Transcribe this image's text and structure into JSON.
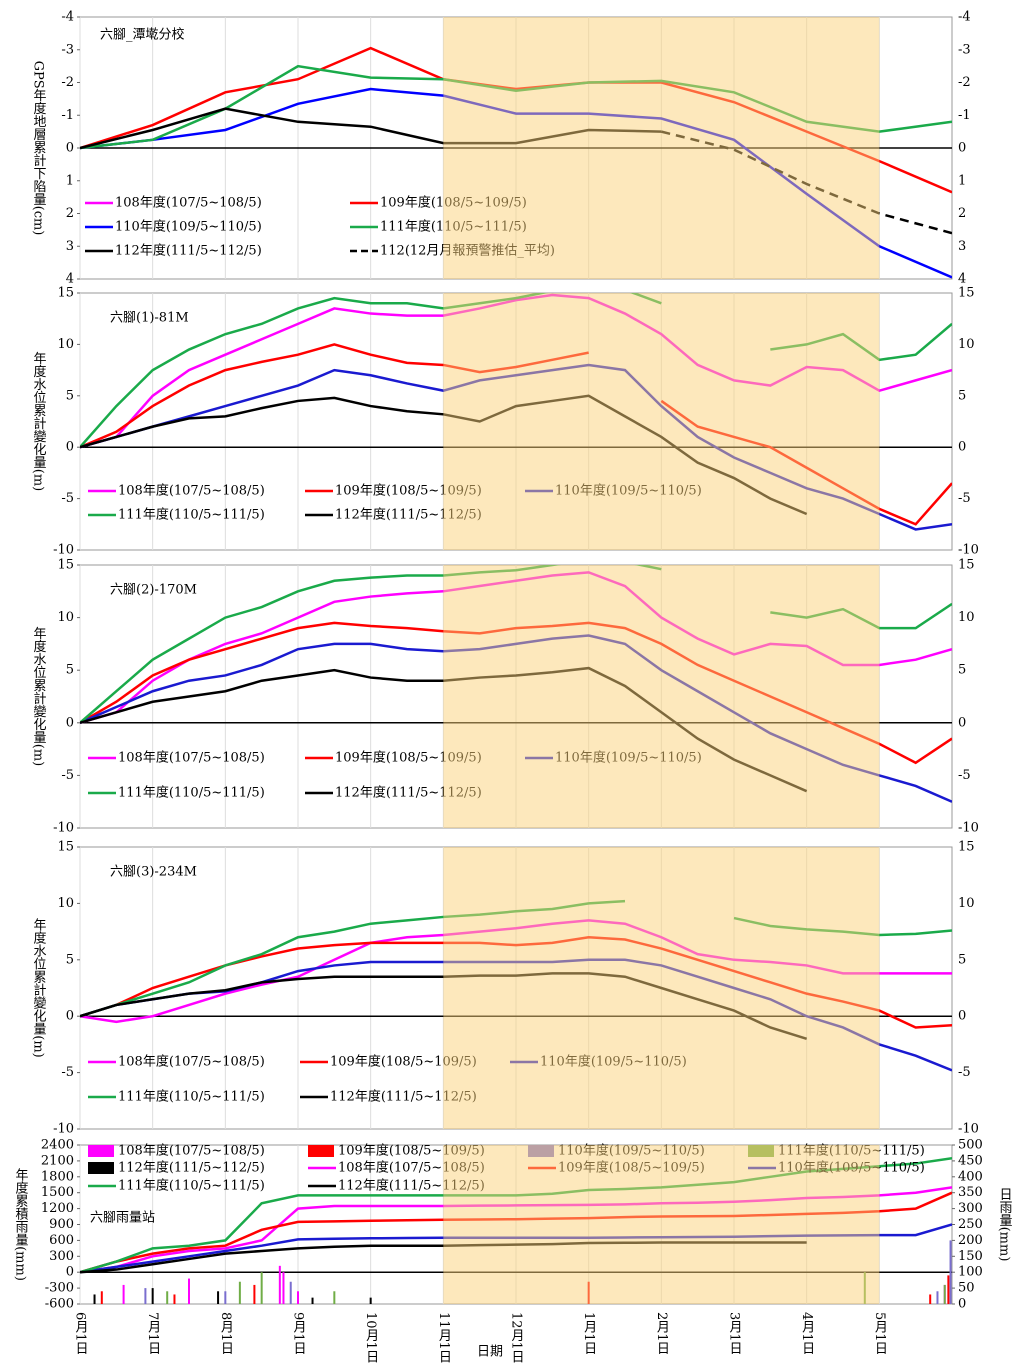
{
  "chart_data": [
    {
      "type": "line",
      "title": "六腳_潭墘分校",
      "ylabel": "GPS年度地層累計下陷量(cm)",
      "x": [
        0,
        1,
        2,
        3,
        4,
        5,
        6,
        7,
        8,
        9,
        10,
        11,
        12
      ],
      "xlim": [
        0,
        12
      ],
      "shaded_range": [
        5,
        11
      ],
      "ylim": [
        -4,
        4
      ],
      "y_inverted": true,
      "yticks": [
        -4,
        -3,
        -2,
        -1,
        0,
        1,
        2,
        3,
        4
      ],
      "series": [
        {
          "name": "108年度(107/5~108/5)",
          "color": "#ff00ff",
          "values": [
            null,
            null,
            null,
            null,
            null,
            null,
            null,
            null,
            null,
            null,
            null,
            null,
            null
          ]
        },
        {
          "name": "109年度(108/5~109/5)",
          "color": "#ff0000",
          "values": [
            0,
            -0.7,
            -1.7,
            -2.1,
            -3.05,
            -2.1,
            -1.8,
            -2.0,
            -2.0,
            -1.4,
            -0.5,
            0.4,
            1.35
          ]
        },
        {
          "name": "110年度(109/5~110/5)",
          "color": "#0000ff",
          "values": [
            0,
            -0.25,
            -0.55,
            -1.35,
            -1.8,
            -1.6,
            -1.05,
            -1.05,
            -0.9,
            -0.25,
            1.4,
            3.0,
            3.95
          ]
        },
        {
          "name": "111年度(110/5~111/5)",
          "color": "#1aaa4a",
          "values": [
            0,
            -0.25,
            -1.2,
            -2.5,
            -2.15,
            -2.1,
            -1.75,
            -2.0,
            -2.05,
            -1.7,
            -0.8,
            -0.5,
            -0.8
          ]
        },
        {
          "name": "112年度(111/5~112/5)",
          "color": "#000000",
          "values": [
            0,
            -0.55,
            -1.2,
            -0.8,
            -0.65,
            -0.15,
            -0.15,
            -0.55,
            -0.5,
            null,
            null,
            null,
            null
          ]
        },
        {
          "name": "112(12月月報預警推估_平均)",
          "color": "#000000",
          "dash": true,
          "values": [
            null,
            null,
            null,
            null,
            null,
            null,
            null,
            null,
            -0.5,
            0.05,
            1.1,
            2.0,
            2.6
          ]
        }
      ]
    },
    {
      "type": "line",
      "title": "六腳(1)-81M",
      "ylabel": "年度水位累計變化量(m)",
      "x": [
        0,
        0.5,
        1,
        1.5,
        2,
        2.5,
        3,
        3.5,
        4,
        4.5,
        5,
        5.5,
        6,
        6.5,
        7,
        7.5,
        8,
        8.5,
        9,
        9.5,
        10,
        10.5,
        11,
        11.5,
        12
      ],
      "xlim": [
        0,
        12
      ],
      "shaded_range": [
        5,
        11
      ],
      "ylim": [
        -10,
        15
      ],
      "yticks": [
        -10,
        -5,
        0,
        5,
        10,
        15
      ],
      "series": [
        {
          "name": "108年度(107/5~108/5)",
          "color": "#ff00ff",
          "values": [
            0,
            1,
            5,
            7.5,
            9,
            10.5,
            12,
            13.5,
            13,
            12.8,
            12.8,
            13.5,
            14.3,
            14.8,
            14.5,
            13,
            11,
            8,
            6.5,
            6,
            7.8,
            7.5,
            5.5,
            6.5,
            7.5
          ]
        },
        {
          "name": "109年度(108/5~109/5)",
          "color": "#ff0000",
          "values": [
            0,
            1.5,
            4,
            6,
            7.5,
            8.3,
            9,
            10,
            9,
            8.2,
            8,
            7.3,
            7.8,
            8.5,
            9.2,
            null,
            4.5,
            2,
            1,
            0,
            -2,
            -4,
            -6,
            -7.5,
            -3.5
          ]
        },
        {
          "name": "110年度(109/5~110/5)",
          "color": "#1a1ad0",
          "values": [
            0,
            1,
            2,
            3,
            4,
            5,
            6,
            7.5,
            7,
            6.2,
            5.5,
            6.5,
            7,
            7.5,
            8,
            7.5,
            4,
            1,
            -1,
            -2.5,
            -4,
            -5,
            -6.5,
            -8,
            -7.5
          ]
        },
        {
          "name": "111年度(110/5~111/5)",
          "color": "#1aaa4a",
          "values": [
            0,
            4,
            7.5,
            9.5,
            11,
            12,
            13.5,
            14.5,
            14,
            14,
            13.5,
            14,
            14.5,
            15.2,
            15.5,
            15.3,
            14,
            null,
            null,
            9.5,
            10,
            11,
            8.5,
            9,
            12
          ]
        },
        {
          "name": "112年度(111/5~112/5)",
          "color": "#000000",
          "values": [
            0,
            1,
            2,
            2.8,
            3,
            3.8,
            4.5,
            4.8,
            4,
            3.5,
            3.2,
            2.5,
            4,
            4.5,
            5,
            3,
            1,
            -1.5,
            -3,
            -5,
            -6.5,
            null,
            null,
            null,
            null
          ]
        }
      ]
    },
    {
      "type": "line",
      "title": "六腳(2)-170M",
      "ylabel": "年度水位累計變化量(m)",
      "x": [
        0,
        0.5,
        1,
        1.5,
        2,
        2.5,
        3,
        3.5,
        4,
        4.5,
        5,
        5.5,
        6,
        6.5,
        7,
        7.5,
        8,
        8.5,
        9,
        9.5,
        10,
        10.5,
        11,
        11.5,
        12
      ],
      "xlim": [
        0,
        12
      ],
      "shaded_range": [
        5,
        11
      ],
      "ylim": [
        -10,
        15
      ],
      "yticks": [
        -10,
        -5,
        0,
        5,
        10,
        15
      ],
      "series": [
        {
          "name": "108年度(107/5~108/5)",
          "color": "#ff00ff",
          "values": [
            0,
            1,
            4,
            6,
            7.5,
            8.5,
            10,
            11.5,
            12,
            12.3,
            12.5,
            13,
            13.5,
            14,
            14.3,
            13,
            10,
            8,
            6.5,
            7.5,
            7.3,
            5.5,
            5.5,
            6,
            7
          ]
        },
        {
          "name": "109年度(108/5~109/5)",
          "color": "#ff0000",
          "values": [
            0,
            2,
            4.5,
            6,
            7,
            8,
            9,
            9.5,
            9.2,
            9,
            8.7,
            8.5,
            9,
            9.2,
            9.5,
            9,
            7.5,
            5.5,
            4,
            2.5,
            1,
            -0.5,
            -2,
            -3.8,
            -1.5
          ]
        },
        {
          "name": "110年度(109/5~110/5)",
          "color": "#1a1ad0",
          "values": [
            0,
            1.5,
            3,
            4,
            4.5,
            5.5,
            7,
            7.5,
            7.5,
            7,
            6.8,
            7,
            7.5,
            8,
            8.3,
            7.5,
            5,
            3,
            1,
            -1,
            -2.5,
            -4,
            -5,
            -6,
            -7.5
          ]
        },
        {
          "name": "111年度(110/5~111/5)",
          "color": "#1aaa4a",
          "values": [
            0,
            3,
            6,
            8,
            10,
            11,
            12.5,
            13.5,
            13.8,
            14,
            14,
            14.3,
            14.5,
            15,
            15.5,
            15.3,
            14.6,
            null,
            null,
            10.5,
            10,
            10.8,
            9,
            9,
            11.3
          ]
        },
        {
          "name": "112年度(111/5~112/5)",
          "color": "#000000",
          "values": [
            0,
            1,
            2,
            2.5,
            3,
            4,
            4.5,
            5,
            4.3,
            4,
            4,
            4.3,
            4.5,
            4.8,
            5.2,
            3.5,
            1,
            -1.5,
            -3.5,
            -5,
            -6.5,
            null,
            null,
            null,
            null
          ]
        }
      ]
    },
    {
      "type": "line",
      "title": "六腳(3)-234M",
      "ylabel": "年度水位累計變化量(m)",
      "x": [
        0,
        0.5,
        1,
        1.5,
        2,
        2.5,
        3,
        3.5,
        4,
        4.5,
        5,
        5.5,
        6,
        6.5,
        7,
        7.5,
        8,
        8.5,
        9,
        9.5,
        10,
        10.5,
        11,
        11.5,
        12
      ],
      "xlim": [
        0,
        12
      ],
      "shaded_range": [
        5,
        11
      ],
      "ylim": [
        -10,
        15
      ],
      "yticks": [
        -10,
        -5,
        0,
        5,
        10,
        15
      ],
      "series": [
        {
          "name": "108年度(107/5~108/5)",
          "color": "#ff00ff",
          "values": [
            0,
            -0.5,
            0,
            1,
            2,
            2.8,
            3.5,
            5,
            6.5,
            7,
            7.2,
            7.5,
            7.8,
            8.2,
            8.5,
            8.2,
            7,
            5.5,
            5,
            4.8,
            4.5,
            3.8,
            3.8,
            3.8,
            3.8
          ]
        },
        {
          "name": "109年度(108/5~109/5)",
          "color": "#ff0000",
          "values": [
            0,
            1,
            2.5,
            3.5,
            4.5,
            5.3,
            6,
            6.3,
            6.5,
            6.5,
            6.5,
            6.5,
            6.3,
            6.5,
            7,
            6.8,
            6,
            5,
            4,
            3,
            2,
            1.3,
            0.5,
            -1,
            -0.8
          ]
        },
        {
          "name": "110年度(109/5~110/5)",
          "color": "#1a1ad0",
          "values": [
            0,
            1,
            1.5,
            2,
            2.2,
            3,
            4,
            4.5,
            4.8,
            4.8,
            4.8,
            4.8,
            4.8,
            4.8,
            5,
            5,
            4.5,
            3.5,
            2.5,
            1.5,
            0,
            -1,
            -2.5,
            -3.5,
            -4.8
          ]
        },
        {
          "name": "111年度(110/5~111/5)",
          "color": "#1aaa4a",
          "values": [
            0,
            1,
            2,
            3,
            4.5,
            5.5,
            7,
            7.5,
            8.2,
            8.5,
            8.8,
            9,
            9.3,
            9.5,
            10,
            10.2,
            null,
            null,
            8.7,
            8,
            7.7,
            7.5,
            7.2,
            7.3,
            7.6
          ]
        },
        {
          "name": "112年度(111/5~112/5)",
          "color": "#000000",
          "values": [
            0,
            1,
            1.5,
            2,
            2.3,
            3,
            3.3,
            3.5,
            3.5,
            3.5,
            3.5,
            3.6,
            3.6,
            3.8,
            3.8,
            3.5,
            2.5,
            1.5,
            0.5,
            -1,
            -2,
            null,
            null,
            null,
            null
          ]
        }
      ]
    },
    {
      "type": "combo",
      "title": "六腳雨量站",
      "ylabel": "年度累積雨量(mm)",
      "y2label": "日雨量(mm)",
      "xlabel": "日期",
      "x": [
        0,
        0.5,
        1,
        1.5,
        2,
        2.5,
        3,
        3.5,
        4,
        4.5,
        5,
        5.5,
        6,
        6.5,
        7,
        7.5,
        8,
        8.5,
        9,
        9.5,
        10,
        10.5,
        11,
        11.5,
        12
      ],
      "xlim": [
        0,
        12
      ],
      "shaded_range": [
        5,
        11
      ],
      "xticks": [
        {
          "value": 0,
          "label": "6月1日"
        },
        {
          "value": 1,
          "label": "7月1日"
        },
        {
          "value": 2,
          "label": "8月1日"
        },
        {
          "value": 3,
          "label": "9月1日"
        },
        {
          "value": 4,
          "label": "10月1日"
        },
        {
          "value": 5,
          "label": "11月1日"
        },
        {
          "value": 6,
          "label": "12月1日"
        },
        {
          "value": 7,
          "label": "1月1日"
        },
        {
          "value": 8,
          "label": "2月1日"
        },
        {
          "value": 9,
          "label": "3月1日"
        },
        {
          "value": 10,
          "label": "4月1日"
        },
        {
          "value": 11,
          "label": "5月1日"
        }
      ],
      "ylim": [
        -600,
        2400
      ],
      "yticks": [
        -600,
        -300,
        0,
        300,
        600,
        900,
        1200,
        1500,
        1800,
        2100,
        2400
      ],
      "y2lim": [
        0,
        500
      ],
      "y2ticks": [
        0,
        50,
        100,
        150,
        200,
        250,
        300,
        350,
        400,
        450,
        500
      ],
      "series": [
        {
          "name": "108年度(107/5~108/5)",
          "kind": "bar",
          "axis": "y2",
          "color": "#ff00ff",
          "x": [
            0.6,
            1.5,
            2.75,
            2.8,
            3.0,
            11.9
          ],
          "values": [
            60,
            80,
            120,
            100,
            40,
            60
          ]
        },
        {
          "name": "109年度(108/5~109/5)",
          "kind": "bar",
          "axis": "y2",
          "color": "#ff0000",
          "x": [
            0.3,
            1.3,
            2.4,
            7.0,
            11.7,
            11.95
          ],
          "values": [
            40,
            30,
            60,
            70,
            30,
            90
          ]
        },
        {
          "name": "110年度(109/5~110/5)",
          "kind": "bar",
          "axis": "y2",
          "color": "#7a6ecf",
          "x": [
            0.9,
            2.0,
            2.9,
            11.8,
            11.98
          ],
          "values": [
            50,
            40,
            70,
            40,
            200
          ]
        },
        {
          "name": "111年度(110/5~111/5)",
          "kind": "bar",
          "axis": "y2",
          "color": "#70ad47",
          "x": [
            1.2,
            2.2,
            2.5,
            3.5,
            10.8,
            11.9
          ],
          "values": [
            40,
            70,
            100,
            40,
            100,
            60
          ]
        },
        {
          "name": "112年度(111/5~112/5)",
          "kind": "bar",
          "axis": "y2",
          "color": "#000000",
          "x": [
            0.2,
            1.0,
            1.9,
            3.2,
            4.0
          ],
          "values": [
            30,
            50,
            40,
            20,
            20
          ]
        },
        {
          "name": "108年度(107/5~108/5)",
          "kind": "line",
          "color": "#ff00ff",
          "values": [
            0,
            100,
            300,
            400,
            450,
            600,
            1200,
            1250,
            1250,
            1250,
            1250,
            1255,
            1260,
            1265,
            1270,
            1280,
            1300,
            1310,
            1330,
            1360,
            1400,
            1420,
            1450,
            1500,
            1600
          ]
        },
        {
          "name": "109年度(108/5~109/5)",
          "kind": "line",
          "color": "#ff0000",
          "values": [
            0,
            200,
            350,
            450,
            500,
            800,
            950,
            960,
            970,
            980,
            990,
            995,
            1000,
            1010,
            1020,
            1040,
            1050,
            1055,
            1060,
            1080,
            1100,
            1120,
            1150,
            1200,
            1500
          ]
        },
        {
          "name": "110年度(109/5~110/5)",
          "kind": "line",
          "color": "#1a1ad0",
          "values": [
            0,
            100,
            200,
            300,
            400,
            500,
            620,
            630,
            640,
            645,
            650,
            650,
            650,
            650,
            650,
            655,
            660,
            665,
            670,
            680,
            690,
            695,
            700,
            700,
            900
          ]
        },
        {
          "name": "111年度(110/5~111/5)",
          "kind": "line",
          "color": "#1aaa4a",
          "values": [
            0,
            200,
            450,
            500,
            600,
            1300,
            1450,
            1450,
            1450,
            1450,
            1450,
            1450,
            1450,
            1480,
            1550,
            1570,
            1600,
            1650,
            1700,
            1800,
            1900,
            1950,
            2000,
            2050,
            2150
          ]
        },
        {
          "name": "112年度(111/5~112/5)",
          "kind": "line",
          "color": "#000000",
          "values": [
            0,
            50,
            150,
            250,
            350,
            400,
            450,
            480,
            500,
            500,
            500,
            510,
            520,
            530,
            550,
            555,
            560,
            560,
            560,
            560,
            560,
            null,
            null,
            null,
            null
          ]
        }
      ]
    }
  ]
}
